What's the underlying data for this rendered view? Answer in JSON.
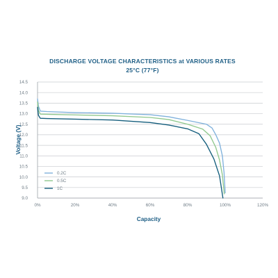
{
  "chart_data": {
    "type": "line",
    "title": "DISCHARGE VOLTAGE CHARACTERISTICS at VARIOUS RATES",
    "subtitle": "25°C (77°F)",
    "xlabel": "Capacity",
    "ylabel": "Voltage (V)",
    "xlim": [
      0,
      120
    ],
    "ylim": [
      9.0,
      14.5
    ],
    "grid": true,
    "legend_position": "bottom-left",
    "x_ticks": [
      {
        "value": 0,
        "label": "0%"
      },
      {
        "value": 20,
        "label": "20%"
      },
      {
        "value": 40,
        "label": "40%"
      },
      {
        "value": 60,
        "label": "60%"
      },
      {
        "value": 80,
        "label": "80%"
      },
      {
        "value": 100,
        "label": "100%"
      },
      {
        "value": 120,
        "label": "120%"
      }
    ],
    "y_ticks": [
      {
        "value": 9.0,
        "label": "9.0"
      },
      {
        "value": 9.5,
        "label": "9.5"
      },
      {
        "value": 10.0,
        "label": "10.0"
      },
      {
        "value": 10.5,
        "label": "10.5"
      },
      {
        "value": 11.0,
        "label": "11.0"
      },
      {
        "value": 11.5,
        "label": "11.5"
      },
      {
        "value": 12.0,
        "label": "12.0"
      },
      {
        "value": 12.5,
        "label": "12.5"
      },
      {
        "value": 13.0,
        "label": "13.0"
      },
      {
        "value": 13.5,
        "label": "13.5"
      },
      {
        "value": 14.0,
        "label": "14.0"
      },
      {
        "value": 14.5,
        "label": "14.5"
      }
    ],
    "series": [
      {
        "name": "0.2C",
        "color": "#7fb1dc",
        "points": [
          [
            0,
            13.7
          ],
          [
            0.5,
            13.35
          ],
          [
            1.5,
            13.12
          ],
          [
            5,
            13.1
          ],
          [
            20,
            13.05
          ],
          [
            40,
            13.02
          ],
          [
            60,
            12.95
          ],
          [
            70,
            12.85
          ],
          [
            80,
            12.68
          ],
          [
            90,
            12.5
          ],
          [
            93,
            12.32
          ],
          [
            95,
            12.0
          ],
          [
            97,
            11.6
          ],
          [
            98.5,
            11.0
          ],
          [
            99.4,
            10.2
          ],
          [
            100,
            9.25
          ]
        ]
      },
      {
        "name": "0.5C",
        "color": "#8fc88d",
        "points": [
          [
            0,
            13.55
          ],
          [
            0.5,
            13.15
          ],
          [
            1.5,
            12.98
          ],
          [
            5,
            12.97
          ],
          [
            20,
            12.94
          ],
          [
            40,
            12.9
          ],
          [
            60,
            12.82
          ],
          [
            70,
            12.72
          ],
          [
            80,
            12.5
          ],
          [
            88,
            12.27
          ],
          [
            92,
            11.95
          ],
          [
            95,
            11.4
          ],
          [
            97,
            10.8
          ],
          [
            98.5,
            10.1
          ],
          [
            99.5,
            9.2
          ]
        ]
      },
      {
        "name": "1C",
        "color": "#135d7c",
        "points": [
          [
            0,
            13.3
          ],
          [
            0.5,
            12.92
          ],
          [
            1.5,
            12.78
          ],
          [
            5,
            12.77
          ],
          [
            20,
            12.74
          ],
          [
            40,
            12.7
          ],
          [
            60,
            12.58
          ],
          [
            70,
            12.46
          ],
          [
            80,
            12.28
          ],
          [
            86,
            12.05
          ],
          [
            90,
            11.55
          ],
          [
            94,
            10.85
          ],
          [
            97,
            10.05
          ],
          [
            98.8,
            9.0
          ]
        ]
      }
    ]
  }
}
